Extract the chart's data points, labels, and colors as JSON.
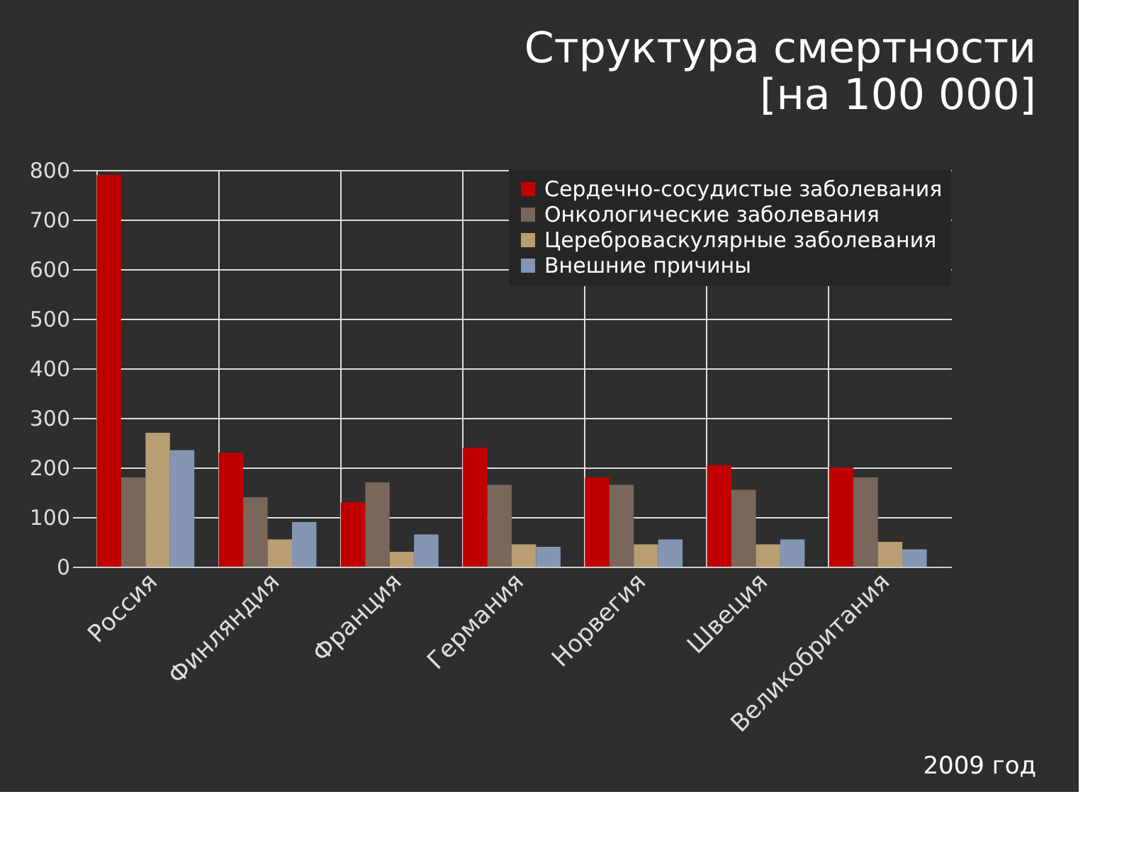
{
  "chart_data": {
    "type": "bar",
    "title": "Структура смертности",
    "subtitle": "[на 100 000]",
    "categories": [
      "Россия",
      "Финляндия",
      "Франция",
      "Германия",
      "Норвегия",
      "Швеция",
      "Великобритания"
    ],
    "series": [
      {
        "name": "Сердечно-сосудистые заболевания",
        "color": "#c00000",
        "values": [
          790,
          230,
          130,
          240,
          180,
          205,
          200
        ]
      },
      {
        "name": "Онкологические заболевания",
        "color": "#7a675c",
        "values": [
          180,
          140,
          170,
          165,
          165,
          155,
          180
        ]
      },
      {
        "name": "Цереброваскулярные заболевания",
        "color": "#b89e72",
        "values": [
          270,
          55,
          30,
          45,
          45,
          45,
          50
        ]
      },
      {
        "name": "Внешние причины",
        "color": "#8496b4",
        "values": [
          235,
          90,
          65,
          40,
          55,
          55,
          35
        ]
      }
    ],
    "ylim": [
      0,
      800
    ],
    "yticks": [
      0,
      100,
      200,
      300,
      400,
      500,
      600,
      700,
      800
    ],
    "grid": true,
    "legend": "top right",
    "annotations": [
      "2009 год"
    ]
  }
}
